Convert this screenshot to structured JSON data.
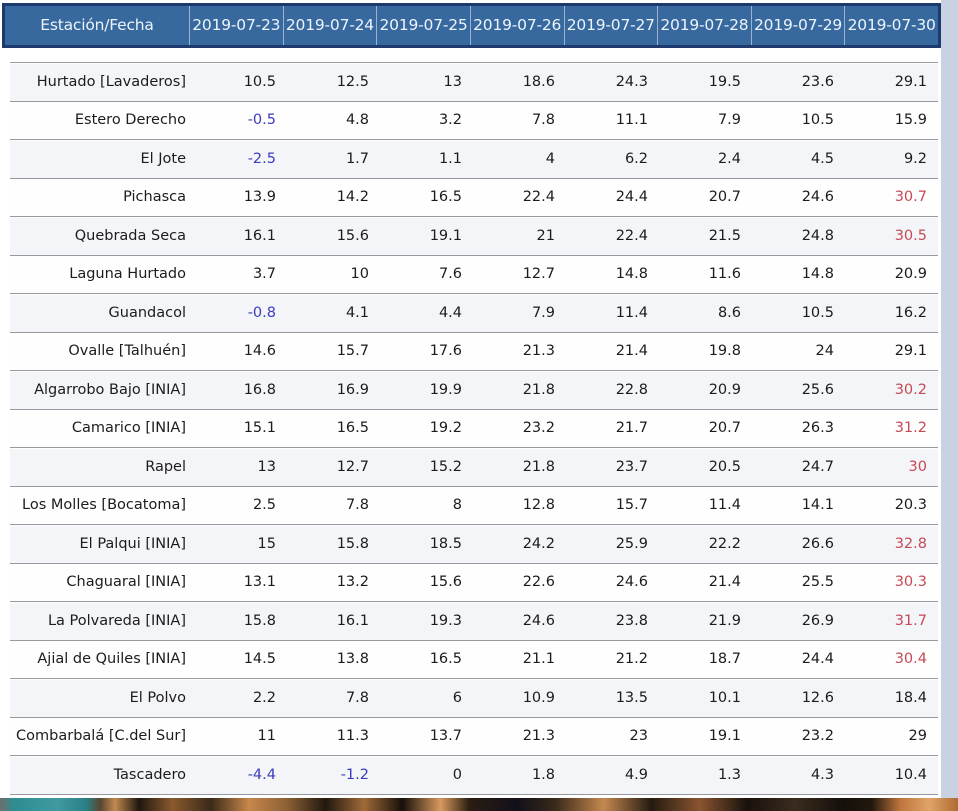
{
  "table": {
    "header": {
      "station_col_label": "Estación/Fecha",
      "dates": [
        "2019-07-23",
        "2019-07-24",
        "2019-07-25",
        "2019-07-26",
        "2019-07-27",
        "2019-07-28",
        "2019-07-29",
        "2019-07-30"
      ]
    },
    "rows": [
      {
        "station": "Hurtado [Lavaderos]",
        "values": [
          "10.5",
          "12.5",
          "13",
          "18.6",
          "24.3",
          "19.5",
          "23.6",
          "29.1"
        ]
      },
      {
        "station": "Estero Derecho",
        "values": [
          "-0.5",
          "4.8",
          "3.2",
          "7.8",
          "11.1",
          "7.9",
          "10.5",
          "15.9"
        ]
      },
      {
        "station": "El Jote",
        "values": [
          "-2.5",
          "1.7",
          "1.1",
          "4",
          "6.2",
          "2.4",
          "4.5",
          "9.2"
        ]
      },
      {
        "station": "Pichasca",
        "values": [
          "13.9",
          "14.2",
          "16.5",
          "22.4",
          "24.4",
          "20.7",
          "24.6",
          "30.7"
        ]
      },
      {
        "station": "Quebrada Seca",
        "values": [
          "16.1",
          "15.6",
          "19.1",
          "21",
          "22.4",
          "21.5",
          "24.8",
          "30.5"
        ]
      },
      {
        "station": "Laguna Hurtado",
        "values": [
          "3.7",
          "10",
          "7.6",
          "12.7",
          "14.8",
          "11.6",
          "14.8",
          "20.9"
        ]
      },
      {
        "station": "Guandacol",
        "values": [
          "-0.8",
          "4.1",
          "4.4",
          "7.9",
          "11.4",
          "8.6",
          "10.5",
          "16.2"
        ]
      },
      {
        "station": "Ovalle [Talhuén]",
        "values": [
          "14.6",
          "15.7",
          "17.6",
          "21.3",
          "21.4",
          "19.8",
          "24",
          "29.1"
        ]
      },
      {
        "station": "Algarrobo Bajo [INIA]",
        "values": [
          "16.8",
          "16.9",
          "19.9",
          "21.8",
          "22.8",
          "20.9",
          "25.6",
          "30.2"
        ]
      },
      {
        "station": "Camarico [INIA]",
        "values": [
          "15.1",
          "16.5",
          "19.2",
          "23.2",
          "21.7",
          "20.7",
          "26.3",
          "31.2"
        ]
      },
      {
        "station": "Rapel",
        "values": [
          "13",
          "12.7",
          "15.2",
          "21.8",
          "23.7",
          "20.5",
          "24.7",
          "30"
        ]
      },
      {
        "station": "Los Molles [Bocatoma]",
        "values": [
          "2.5",
          "7.8",
          "8",
          "12.8",
          "15.7",
          "11.4",
          "14.1",
          "20.3"
        ]
      },
      {
        "station": "El Palqui [INIA]",
        "values": [
          "15",
          "15.8",
          "18.5",
          "24.2",
          "25.9",
          "22.2",
          "26.6",
          "32.8"
        ]
      },
      {
        "station": "Chaguaral [INIA]",
        "values": [
          "13.1",
          "13.2",
          "15.6",
          "22.6",
          "24.6",
          "21.4",
          "25.5",
          "30.3"
        ]
      },
      {
        "station": "La Polvareda [INIA]",
        "values": [
          "15.8",
          "16.1",
          "19.3",
          "24.6",
          "23.8",
          "21.9",
          "26.9",
          "31.7"
        ]
      },
      {
        "station": "Ajial de Quiles [INIA]",
        "values": [
          "14.5",
          "13.8",
          "16.5",
          "21.1",
          "21.2",
          "18.7",
          "24.4",
          "30.4"
        ]
      },
      {
        "station": "El Polvo",
        "values": [
          "2.2",
          "7.8",
          "6",
          "10.9",
          "13.5",
          "10.1",
          "12.6",
          "18.4"
        ]
      },
      {
        "station": "Combarbalá [C.del Sur]",
        "values": [
          "11",
          "11.3",
          "13.7",
          "21.3",
          "23",
          "19.1",
          "23.2",
          "29"
        ]
      },
      {
        "station": "Tascadero",
        "values": [
          "-4.4",
          "-1.2",
          "0",
          "1.8",
          "4.9",
          "1.3",
          "4.3",
          "10.4"
        ]
      }
    ]
  },
  "value_color_rules": {
    "negative_color": "#3b3cba",
    "high_color": "#c64a56",
    "high_threshold": 30,
    "normal_color": "#1c1c1c"
  },
  "chart_data": {
    "type": "table",
    "title": "Estación/Fecha",
    "columns": [
      "Estación/Fecha",
      "2019-07-23",
      "2019-07-24",
      "2019-07-25",
      "2019-07-26",
      "2019-07-27",
      "2019-07-28",
      "2019-07-29",
      "2019-07-30"
    ],
    "rows": [
      [
        "Hurtado [Lavaderos]",
        10.5,
        12.5,
        13,
        18.6,
        24.3,
        19.5,
        23.6,
        29.1
      ],
      [
        "Estero Derecho",
        -0.5,
        4.8,
        3.2,
        7.8,
        11.1,
        7.9,
        10.5,
        15.9
      ],
      [
        "El Jote",
        -2.5,
        1.7,
        1.1,
        4,
        6.2,
        2.4,
        4.5,
        9.2
      ],
      [
        "Pichasca",
        13.9,
        14.2,
        16.5,
        22.4,
        24.4,
        20.7,
        24.6,
        30.7
      ],
      [
        "Quebrada Seca",
        16.1,
        15.6,
        19.1,
        21,
        22.4,
        21.5,
        24.8,
        30.5
      ],
      [
        "Laguna Hurtado",
        3.7,
        10,
        7.6,
        12.7,
        14.8,
        11.6,
        14.8,
        20.9
      ],
      [
        "Guandacol",
        -0.8,
        4.1,
        4.4,
        7.9,
        11.4,
        8.6,
        10.5,
        16.2
      ],
      [
        "Ovalle [Talhuén]",
        14.6,
        15.7,
        17.6,
        21.3,
        21.4,
        19.8,
        24,
        29.1
      ],
      [
        "Algarrobo Bajo [INIA]",
        16.8,
        16.9,
        19.9,
        21.8,
        22.8,
        20.9,
        25.6,
        30.2
      ],
      [
        "Camarico [INIA]",
        15.1,
        16.5,
        19.2,
        23.2,
        21.7,
        20.7,
        26.3,
        31.2
      ],
      [
        "Rapel",
        13,
        12.7,
        15.2,
        21.8,
        23.7,
        20.5,
        24.7,
        30
      ],
      [
        "Los Molles [Bocatoma]",
        2.5,
        7.8,
        8,
        12.8,
        15.7,
        11.4,
        14.1,
        20.3
      ],
      [
        "El Palqui [INIA]",
        15,
        15.8,
        18.5,
        24.2,
        25.9,
        22.2,
        26.6,
        32.8
      ],
      [
        "Chaguaral [INIA]",
        13.1,
        13.2,
        15.6,
        22.6,
        24.6,
        21.4,
        25.5,
        30.3
      ],
      [
        "La Polvareda [INIA]",
        15.8,
        16.1,
        19.3,
        24.6,
        23.8,
        21.9,
        26.9,
        31.7
      ],
      [
        "Ajial de Quiles [INIA]",
        14.5,
        13.8,
        16.5,
        21.1,
        21.2,
        18.7,
        24.4,
        30.4
      ],
      [
        "El Polvo",
        2.2,
        7.8,
        6,
        10.9,
        13.5,
        10.1,
        12.6,
        18.4
      ],
      [
        "Combarbalá [C.del Sur]",
        11,
        11.3,
        13.7,
        21.3,
        23,
        19.1,
        23.2,
        29
      ],
      [
        "Tascadero",
        -4.4,
        -1.2,
        0,
        1.8,
        4.9,
        1.3,
        4.3,
        10.4
      ]
    ],
    "notes": "negative values rendered blue, values >= 30 rendered red"
  },
  "colors": {
    "header_bg": "#37699e",
    "header_border": "#1c3a6d",
    "header_text": "#edf3fb",
    "row_separator": "#98989f",
    "odd_row_bg": "#f4f5f8",
    "right_strip_bg": "#c9d2e2"
  }
}
